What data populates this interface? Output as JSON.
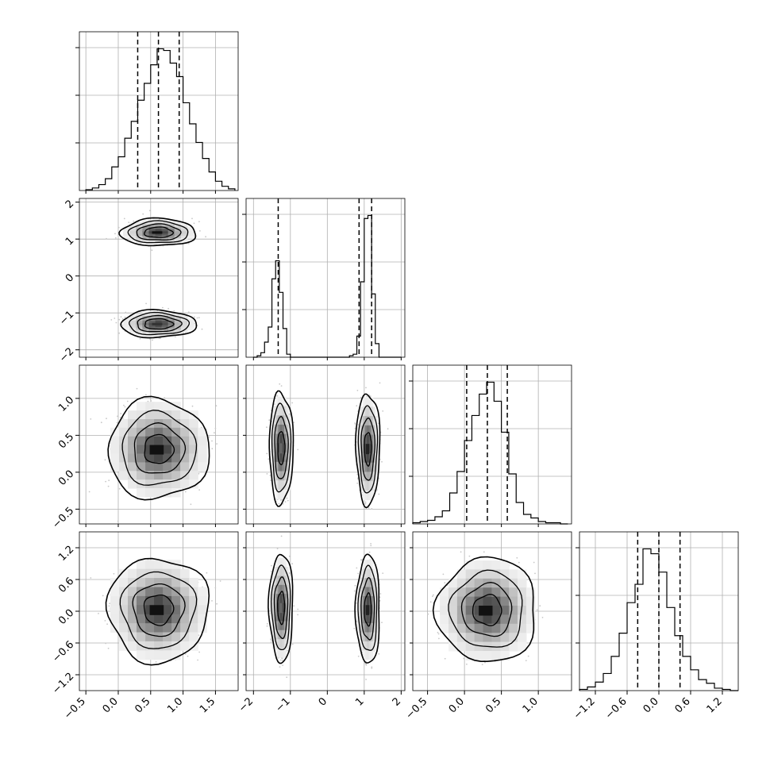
{
  "chart_data": {
    "type": "corner",
    "grid": true,
    "quantile_lines": "dashed",
    "parameters": [
      {
        "range": [
          -0.6,
          1.85
        ],
        "ticks": [
          -0.5,
          0.0,
          0.5,
          1.0,
          1.5
        ],
        "tick_labels": [
          "−0.5",
          "0.0",
          "0.5",
          "1.0",
          "1.5"
        ],
        "quantiles": [
          0.3,
          0.62,
          0.94
        ],
        "histogram": {
          "bins_start": -0.5,
          "bin_width": 0.1,
          "values": [
            1,
            3,
            7,
            14,
            28,
            40,
            62,
            82,
            107,
            127,
            149,
            168,
            166,
            151,
            135,
            104,
            79,
            57,
            38,
            22,
            11,
            5,
            2
          ]
        }
      },
      {
        "range": [
          -2.2,
          2.1
        ],
        "ticks": [
          -2,
          -1,
          0,
          1,
          2
        ],
        "tick_labels": [
          "−2",
          "−1",
          "0",
          "1",
          "2"
        ],
        "quantiles": [
          -1.33,
          0.86,
          1.2
        ],
        "histogram": {
          "bins_start": -2.0,
          "bin_width": 0.1,
          "values": [
            0,
            1,
            3,
            10,
            20,
            52,
            64,
            43,
            19,
            2,
            0,
            0,
            0,
            0,
            0,
            0,
            0,
            0,
            0,
            0,
            0,
            0,
            0,
            0,
            0,
            0,
            1,
            2,
            14,
            50,
            92,
            94,
            42,
            9,
            0,
            0,
            0,
            0,
            0,
            0
          ]
        }
      },
      {
        "range": [
          -0.7,
          1.45
        ],
        "ticks": [
          -0.5,
          0.0,
          0.5,
          1.0
        ],
        "tick_labels": [
          "−0.5",
          "0.0",
          "0.5",
          "1.0"
        ],
        "quantiles": [
          0.03,
          0.31,
          0.58
        ],
        "histogram": {
          "bins_start": -0.7,
          "bin_width": 0.1,
          "values": [
            1,
            2,
            3,
            6,
            11,
            26,
            44,
            70,
            91,
            109,
            119,
            103,
            77,
            42,
            18,
            8,
            5,
            2,
            1,
            1,
            0
          ]
        }
      },
      {
        "range": [
          -1.5,
          1.5
        ],
        "ticks": [
          -1.2,
          -0.6,
          0.0,
          0.6,
          1.2
        ],
        "tick_labels": [
          "−1.2",
          "−0.6",
          "0.0",
          "0.6",
          "1.2"
        ],
        "quantiles": [
          -0.4,
          0.0,
          0.4
        ],
        "histogram": {
          "bins_start": -1.5,
          "bin_width": 0.15,
          "values": [
            1,
            3,
            7,
            14,
            28,
            47,
            72,
            87,
            116,
            112,
            97,
            68,
            45,
            28,
            17,
            9,
            6,
            2,
            1,
            0
          ]
        }
      }
    ],
    "joint_2d": [
      {
        "x": 0,
        "y": 1,
        "centers": [
          [
            0.62,
            1.18
          ],
          [
            0.62,
            -1.3
          ]
        ],
        "sx": 0.22,
        "sy": 0.14,
        "contour_radii": [
          1.0,
          1.55,
          2.1,
          2.65
        ],
        "peak_fill": [
          "#111111",
          "#333333"
        ]
      },
      {
        "x": 0,
        "y": 2,
        "centers": [
          [
            0.62,
            0.31
          ]
        ],
        "sx": 0.3,
        "sy": 0.26,
        "contour_radii": [
          0.75,
          1.3,
          1.9,
          2.6
        ],
        "peak_fill": [
          "#111111"
        ]
      },
      {
        "x": 1,
        "y": 2,
        "centers": [
          [
            -1.25,
            0.33
          ],
          [
            1.1,
            0.32
          ]
        ],
        "sx": 0.12,
        "sy": 0.28,
        "contour_radii": [
          0.8,
          1.5,
          2.1,
          2.7
        ],
        "peak_fill": [
          "#666666",
          "#222222"
        ]
      },
      {
        "x": 0,
        "y": 3,
        "centers": [
          [
            0.62,
            0.03
          ]
        ],
        "sx": 0.3,
        "sy": 0.38,
        "contour_radii": [
          0.75,
          1.3,
          1.9,
          2.6
        ],
        "peak_fill": [
          "#111111"
        ]
      },
      {
        "x": 1,
        "y": 3,
        "centers": [
          [
            -1.25,
            0.07
          ],
          [
            1.1,
            0.03
          ]
        ],
        "sx": 0.12,
        "sy": 0.38,
        "contour_radii": [
          0.8,
          1.5,
          2.1,
          2.7
        ],
        "peak_fill": [
          "#666666",
          "#222222"
        ]
      },
      {
        "x": 2,
        "y": 3,
        "centers": [
          [
            0.31,
            0.02
          ]
        ],
        "sx": 0.26,
        "sy": 0.38,
        "contour_radii": [
          0.75,
          1.3,
          1.9,
          2.6
        ],
        "peak_fill": [
          "#111111"
        ]
      }
    ]
  }
}
